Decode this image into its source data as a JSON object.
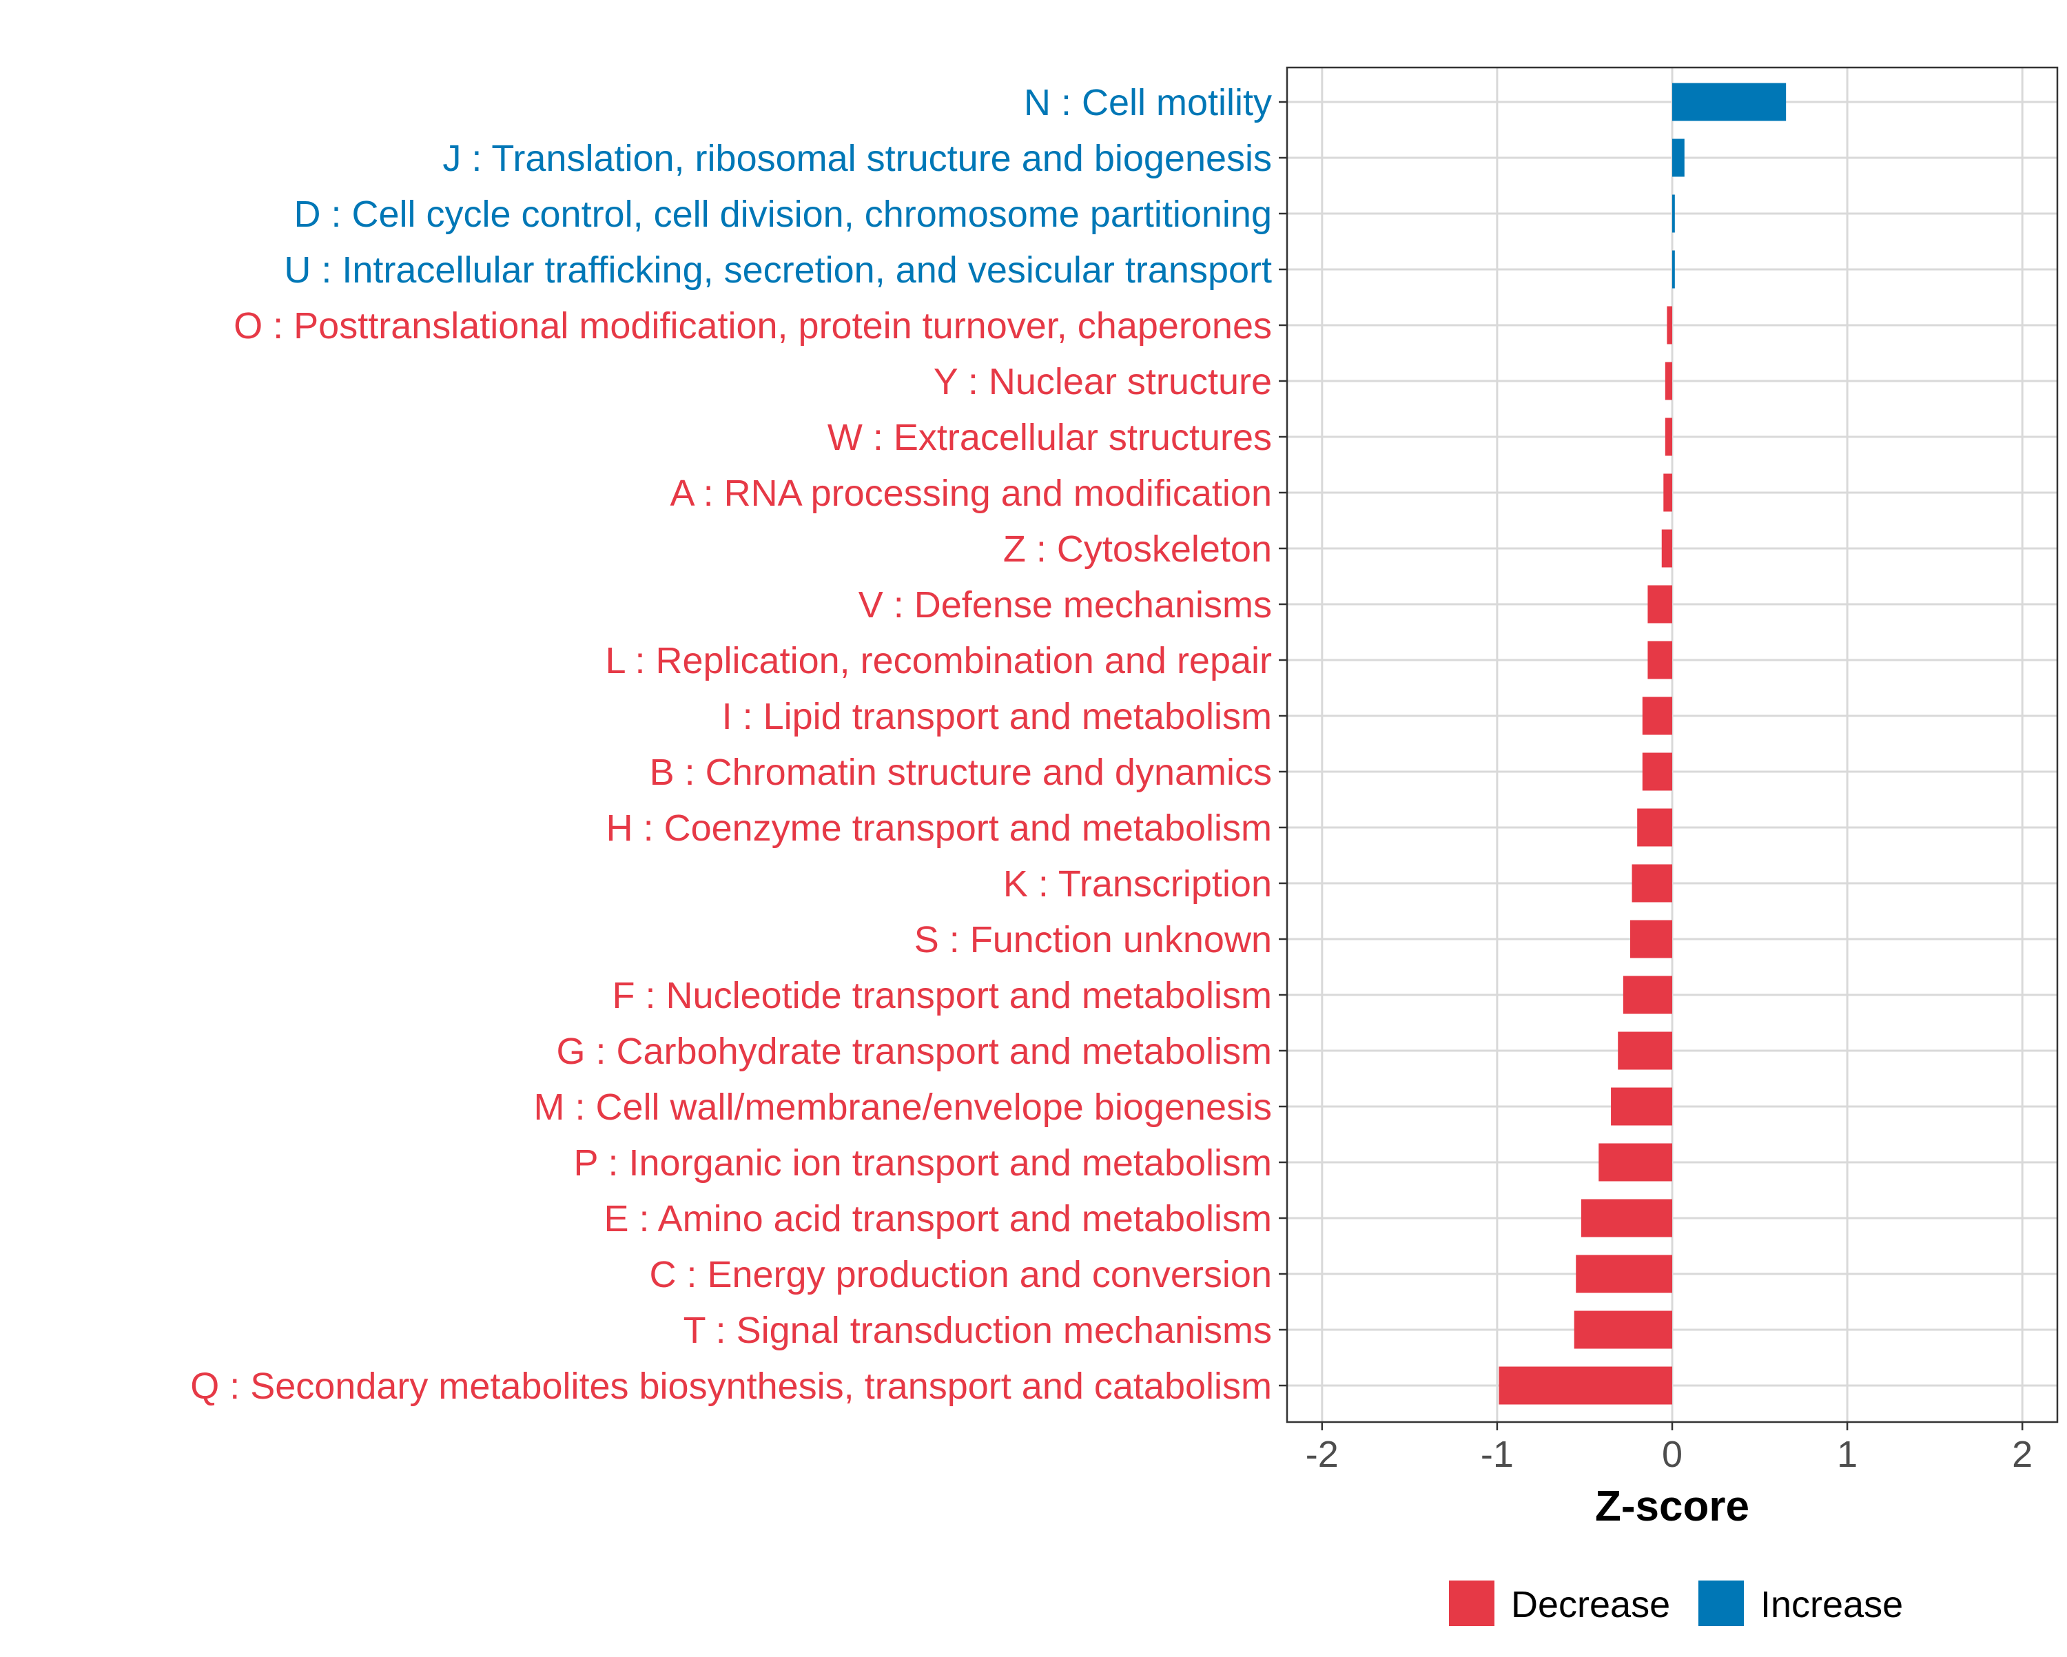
{
  "colors": {
    "decrease": "#E63946",
    "increase": "#0077B6",
    "grid": "#D9D9D9",
    "panel_border": "#333333",
    "tick_text": "#4D4D4D",
    "axis_title": "#000000"
  },
  "chart_data": {
    "type": "bar",
    "orientation": "horizontal",
    "xlabel": "Z-score",
    "ylabel": "",
    "xlim": [
      -2.2,
      2.2
    ],
    "xticks": [
      -2,
      -1,
      0,
      1,
      2
    ],
    "xtick_labels": [
      "-2",
      "-1",
      "0",
      "1",
      "2"
    ],
    "grid": true,
    "legend": {
      "position": "bottom",
      "entries": [
        {
          "label": "Decrease",
          "color_key": "decrease"
        },
        {
          "label": "Increase",
          "color_key": "increase"
        }
      ]
    },
    "categories": [
      "N : Cell motility",
      "J : Translation, ribosomal structure and biogenesis",
      "D : Cell cycle control, cell division, chromosome partitioning",
      "U : Intracellular trafficking, secretion, and vesicular transport",
      "O : Posttranslational modification, protein turnover, chaperones",
      "Y : Nuclear structure",
      "W : Extracellular structures",
      "A : RNA processing and modification",
      "Z : Cytoskeleton",
      "V : Defense mechanisms",
      "L : Replication, recombination and repair",
      "I : Lipid transport and metabolism",
      "B : Chromatin structure and dynamics",
      "H : Coenzyme transport and metabolism",
      "K : Transcription",
      "S : Function unknown",
      "F : Nucleotide transport and metabolism",
      "G : Carbohydrate transport and metabolism",
      "M : Cell wall/membrane/envelope biogenesis",
      "P : Inorganic ion transport and metabolism",
      "E : Amino acid transport and metabolism",
      "C : Energy production and conversion",
      "T : Signal transduction mechanisms",
      "Q : Secondary metabolites biosynthesis, transport and catabolism"
    ],
    "values": [
      0.65,
      0.07,
      0.015,
      0.015,
      -0.03,
      -0.04,
      -0.04,
      -0.05,
      -0.06,
      -0.14,
      -0.14,
      -0.17,
      -0.17,
      -0.2,
      -0.23,
      -0.24,
      -0.28,
      -0.31,
      -0.35,
      -0.42,
      -0.52,
      -0.55,
      -0.56,
      -0.99
    ],
    "directions": [
      "Increase",
      "Increase",
      "Increase",
      "Increase",
      "Decrease",
      "Decrease",
      "Decrease",
      "Decrease",
      "Decrease",
      "Decrease",
      "Decrease",
      "Decrease",
      "Decrease",
      "Decrease",
      "Decrease",
      "Decrease",
      "Decrease",
      "Decrease",
      "Decrease",
      "Decrease",
      "Decrease",
      "Decrease",
      "Decrease",
      "Decrease"
    ]
  }
}
